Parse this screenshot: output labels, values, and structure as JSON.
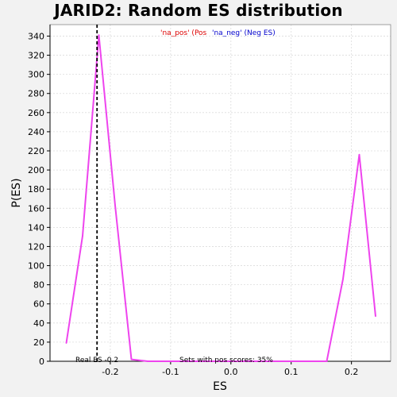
{
  "chart_data": {
    "type": "line",
    "title": "JARID2: Random ES distribution",
    "xlabel": "ES",
    "ylabel": "P(ES)",
    "xlim": [
      -0.3,
      0.265
    ],
    "ylim": [
      0,
      352
    ],
    "x_ticks": [
      -0.2,
      -0.1,
      0.0,
      0.1,
      0.2
    ],
    "x_tick_labels": [
      "-0.2",
      "-0.1",
      "0.0",
      "0.1",
      "0.2"
    ],
    "y_ticks": [
      0,
      20,
      40,
      60,
      80,
      100,
      120,
      140,
      160,
      180,
      200,
      220,
      240,
      260,
      280,
      300,
      320,
      340
    ],
    "grid": true,
    "series": [
      {
        "color": "#ee44ee",
        "x": [
          -0.273,
          -0.246,
          -0.219,
          -0.192,
          -0.165,
          -0.138,
          -0.111,
          -0.084,
          -0.057,
          -0.03,
          -0.003,
          0.024,
          0.051,
          0.078,
          0.105,
          0.132,
          0.159,
          0.186,
          0.213,
          0.24
        ],
        "y": [
          19,
          131,
          341,
          163,
          2,
          0,
          0,
          0,
          0,
          0,
          0,
          0,
          0,
          0,
          0,
          0,
          0,
          86,
          216,
          47
        ]
      }
    ],
    "real_es": {
      "x": -0.222,
      "label": "Real ES -0.2"
    },
    "legend": {
      "position": "top",
      "pos_label": "'na_pos' (Pos",
      "pos_color": "#dd0000",
      "neg_label": "'na_neg' (Neg ES)",
      "neg_color": "#0000cc"
    },
    "annotation": "Sets with pos scores: 35%"
  }
}
